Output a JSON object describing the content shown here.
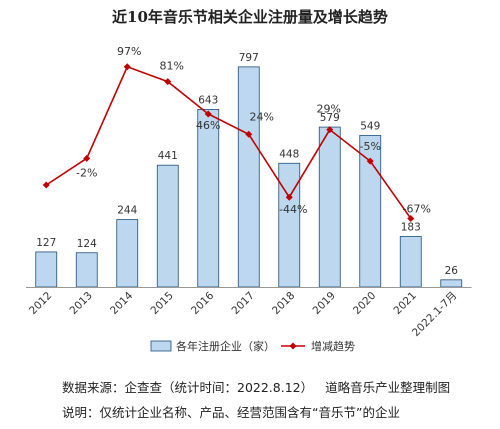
{
  "chart_data": {
    "type": "bar+line",
    "title": "近10年音乐节相关企业注册量及增长趋势",
    "categories": [
      "2012",
      "2013",
      "2014",
      "2015",
      "2016",
      "2017",
      "2018",
      "2019",
      "2020",
      "2021",
      "2022.1-7月"
    ],
    "series": [
      {
        "name": "各年注册企业（家）",
        "type": "bar",
        "color": "#bdd7ee",
        "values": [
          127,
          124,
          244,
          441,
          643,
          797,
          448,
          579,
          549,
          183,
          26
        ]
      },
      {
        "name": "增减趋势",
        "type": "line",
        "color": "#c00000",
        "values": [
          null,
          -2,
          97,
          81,
          46,
          24,
          -44,
          29,
          -5,
          -67,
          null
        ],
        "labels": [
          "",
          "-2%",
          "97%",
          "81%",
          "46%",
          "24%",
          "-44%",
          "29%",
          "-5%",
          "-67%",
          ""
        ]
      }
    ],
    "legend": "bottom",
    "grid": false
  },
  "notes": {
    "source_a": "数据来源：企查查（统计时间：2022.8.12）",
    "source_b": "道略音乐产业整理制图",
    "scope": "说明：仅统计企业名称、产品、经营范围含有“音乐节”的企业"
  }
}
